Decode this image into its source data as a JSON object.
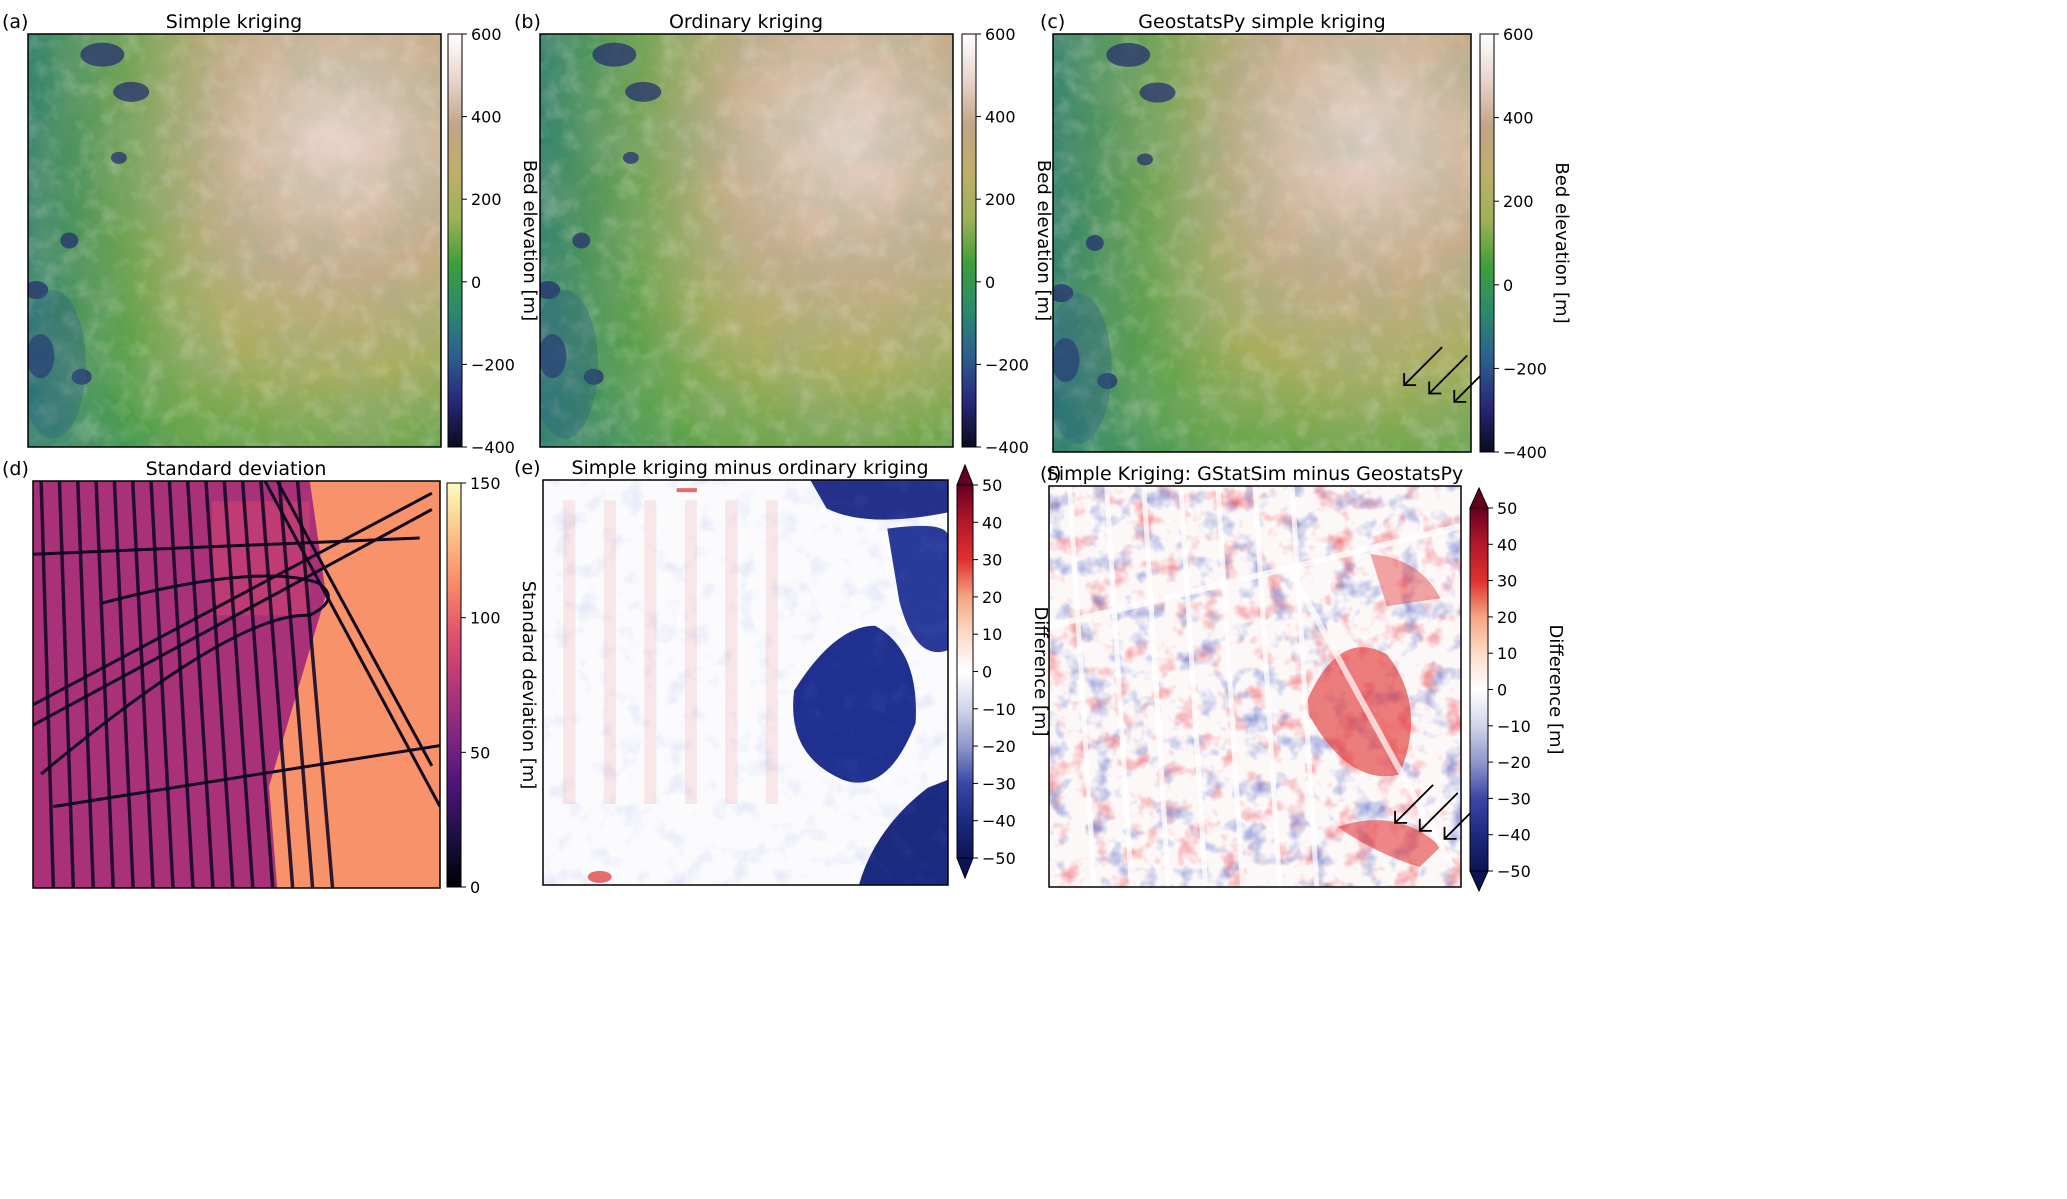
{
  "panels": [
    {
      "label": "(a)",
      "title": "Simple kriging",
      "map": "elevation",
      "arrows": false,
      "colorbar": {
        "label": "Bed elevation [m]",
        "ticks": [
          "600",
          "400",
          "200",
          "0",
          "−200",
          "−400"
        ],
        "extend": false,
        "stops": [
          "#ffffff",
          "#e9d4cc",
          "#c2a587",
          "#bfae6c",
          "#9fb155",
          "#3f9e3b",
          "#2a8a6d",
          "#2d5f8f",
          "#28287a",
          "#0a0a20"
        ]
      }
    },
    {
      "label": "(b)",
      "title": "Ordinary kriging",
      "map": "elevation",
      "arrows": false,
      "colorbar": {
        "label": "Bed elevation [m]",
        "ticks": [
          "600",
          "400",
          "200",
          "0",
          "−200",
          "−400"
        ],
        "extend": false,
        "stops": [
          "#ffffff",
          "#e9d4cc",
          "#c2a587",
          "#bfae6c",
          "#9fb155",
          "#3f9e3b",
          "#2a8a6d",
          "#2d5f8f",
          "#28287a",
          "#0a0a20"
        ]
      }
    },
    {
      "label": "(c)",
      "title": "GeostatsPy simple kriging",
      "map": "elevation",
      "arrows": true,
      "colorbar": {
        "label": "Bed elevation [m]",
        "ticks": [
          "600",
          "400",
          "200",
          "0",
          "−200",
          "−400"
        ],
        "extend": false,
        "stops": [
          "#ffffff",
          "#e9d4cc",
          "#c2a587",
          "#bfae6c",
          "#9fb155",
          "#3f9e3b",
          "#2a8a6d",
          "#2d5f8f",
          "#28287a",
          "#0a0a20"
        ]
      }
    },
    {
      "label": "(d)",
      "title": "Standard deviation",
      "map": "stddev",
      "arrows": false,
      "colorbar": {
        "label": "Standard deviation [m]",
        "ticks": [
          "150",
          "100",
          "50",
          "0"
        ],
        "extend": false,
        "stops": [
          "#fcfdbf",
          "#fec287",
          "#f98a6a",
          "#e3506b",
          "#b5367a",
          "#822681",
          "#4f127b",
          "#1c1044",
          "#000004"
        ]
      }
    },
    {
      "label": "(e)",
      "title": "Simple kriging minus ordinary kriging",
      "map": "diff-e",
      "arrows": false,
      "colorbar": {
        "label": "Difference [m]",
        "ticks": [
          "50",
          "40",
          "30",
          "20",
          "10",
          "0",
          "−10",
          "−20",
          "−30",
          "−40",
          "−50"
        ],
        "extend": true,
        "stops": [
          "#67001f",
          "#b2182b",
          "#e0312e",
          "#f4a582",
          "#fddbc7",
          "#ffffff",
          "#d1d5ea",
          "#8f97cc",
          "#3a47a6",
          "#1c2a7e",
          "#0d1455"
        ]
      }
    },
    {
      "label": "(f)",
      "title": "Simple Kriging: GStatSim minus GeostatsPy",
      "map": "diff-f",
      "arrows": true,
      "colorbar": {
        "label": "Difference [m]",
        "ticks": [
          "50",
          "40",
          "30",
          "20",
          "10",
          "0",
          "−10",
          "−20",
          "−30",
          "−40",
          "−50"
        ],
        "extend": true,
        "stops": [
          "#67001f",
          "#b2182b",
          "#e0312e",
          "#f4a582",
          "#fddbc7",
          "#ffffff",
          "#d1d5ea",
          "#8f97cc",
          "#3a47a6",
          "#1c2a7e",
          "#0d1455"
        ]
      }
    }
  ]
}
